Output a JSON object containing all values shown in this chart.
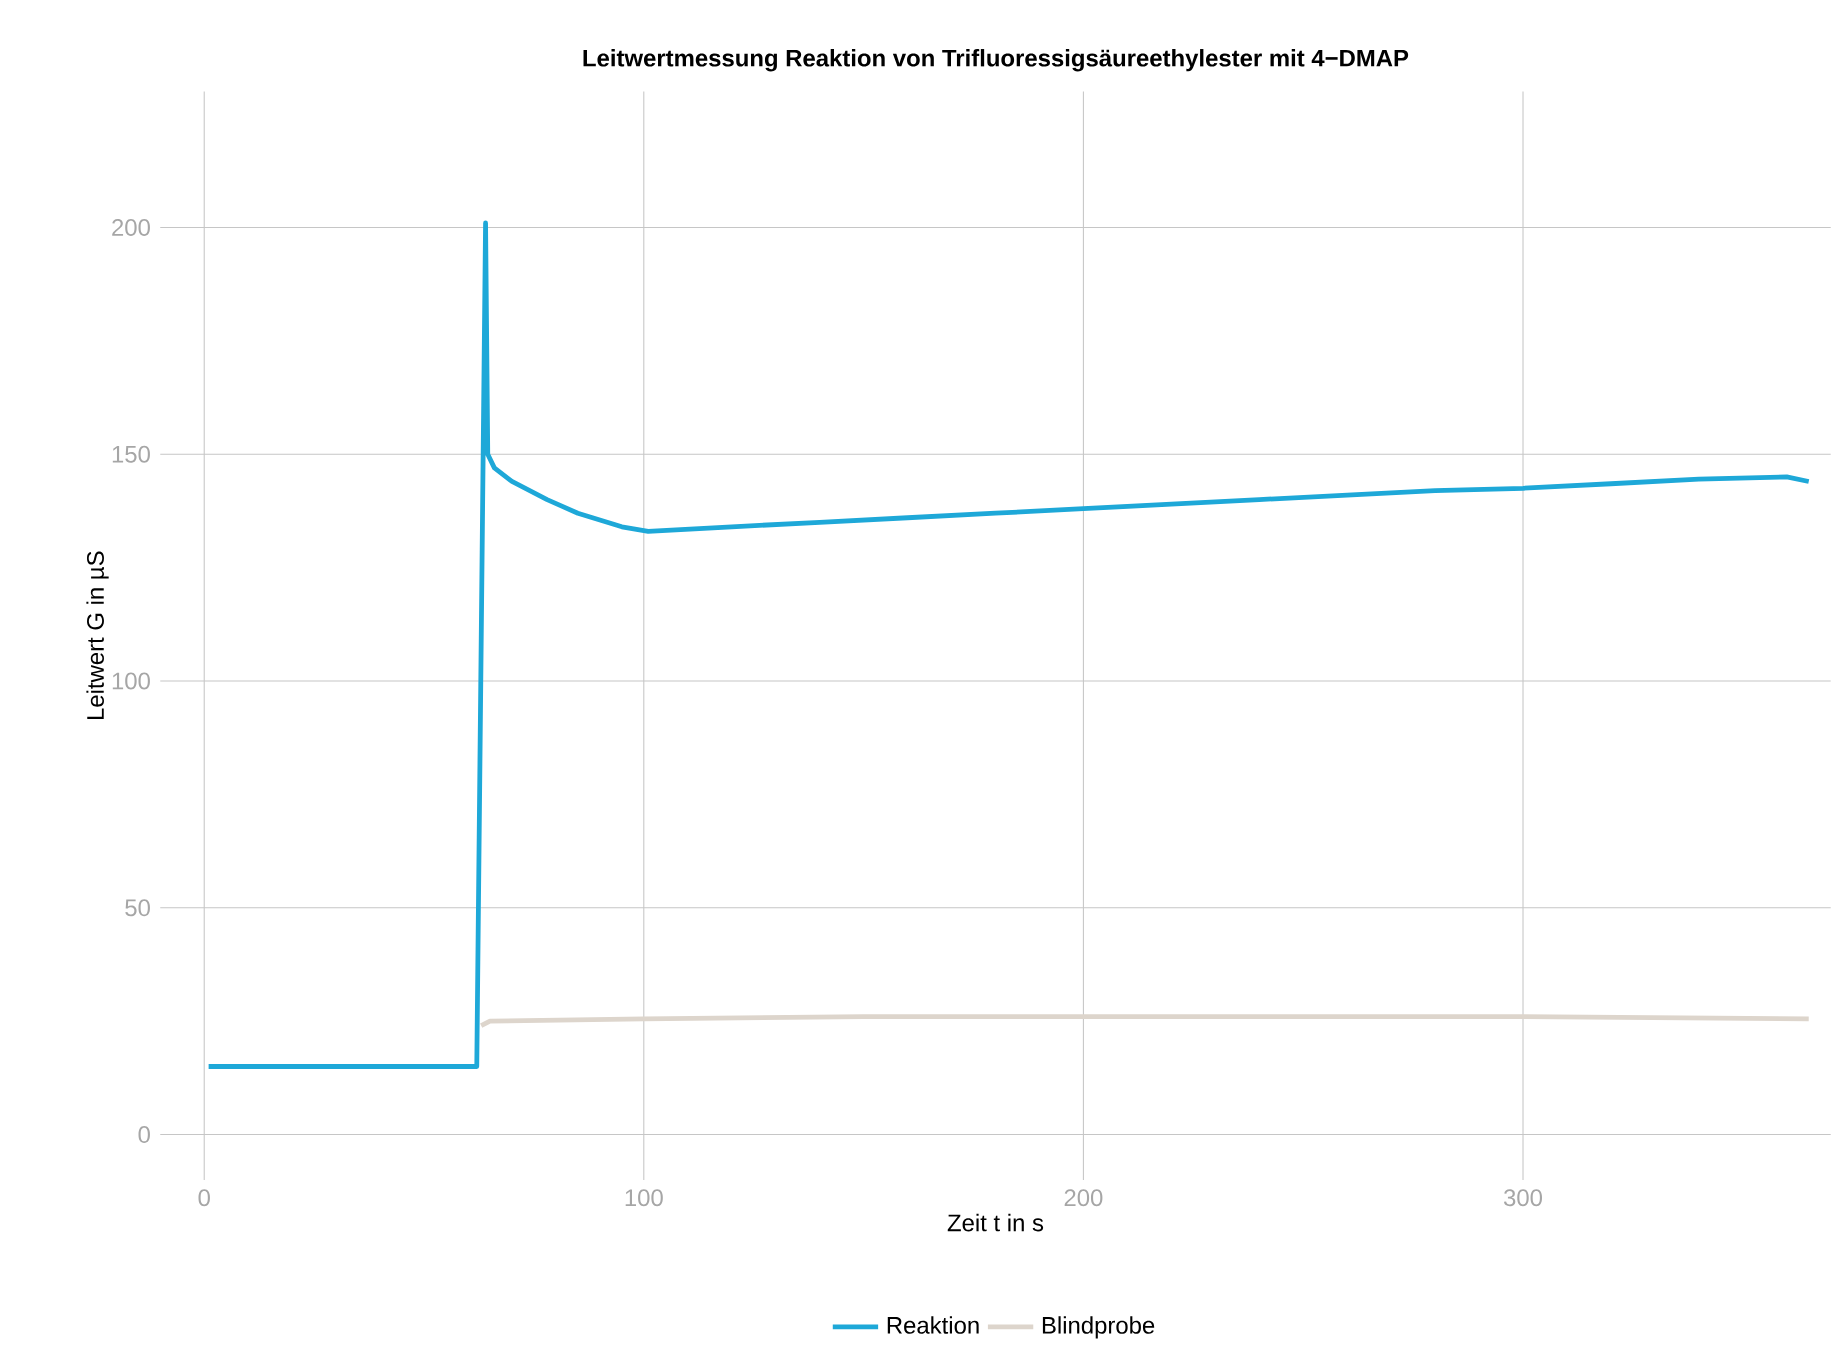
{
  "chart_data": {
    "type": "line",
    "title": "Leitwertmessung Reaktion von Trifluoressigsäureethylester mit 4−DMAP",
    "xlabel": "Zeit t in s",
    "ylabel": "Leitwert G in µS",
    "xlim": [
      -10,
      370
    ],
    "ylim": [
      -10,
      230
    ],
    "xticks": [
      0,
      100,
      200,
      300
    ],
    "yticks": [
      0,
      50,
      100,
      150,
      200
    ],
    "grid": true,
    "legend": "bottom",
    "marker": "none",
    "line_style": "solid",
    "series": [
      {
        "name": "Reaktion",
        "color": "#1ea8d8",
        "x": [
          1,
          30,
          61,
          62,
          64,
          64.5,
          66,
          70,
          78,
          85,
          95,
          101,
          120,
          140,
          160,
          180,
          200,
          220,
          240,
          260,
          280,
          300,
          320,
          340,
          360,
          365
        ],
        "values": [
          15,
          15,
          15,
          15,
          201,
          150,
          147,
          144,
          140,
          137,
          134,
          133,
          134,
          135,
          136,
          137,
          138,
          139,
          140,
          141,
          142,
          142.5,
          143.5,
          144.5,
          145,
          144
        ]
      },
      {
        "name": "Blindprobe",
        "color": "#ddd5cc",
        "x": [
          63,
          65,
          100,
          150,
          200,
          250,
          300,
          365
        ],
        "values": [
          24,
          25,
          25.5,
          26,
          26,
          26,
          26,
          25.5
        ]
      }
    ]
  }
}
